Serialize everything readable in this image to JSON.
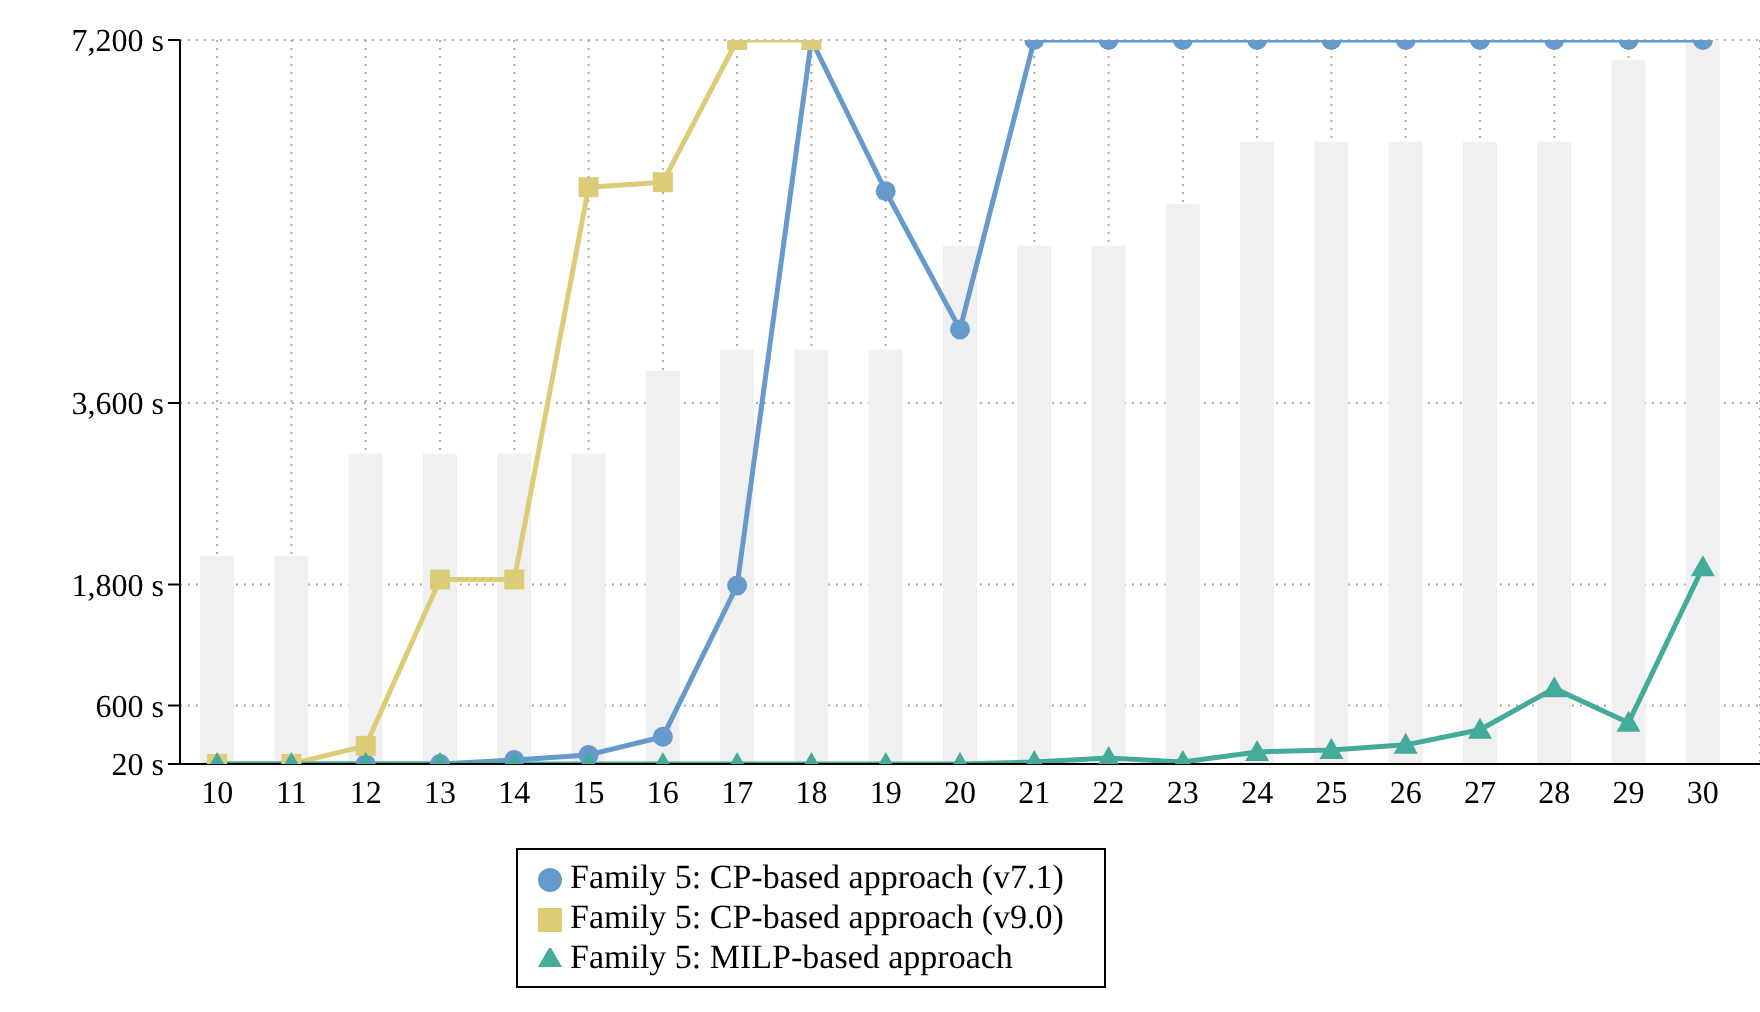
{
  "chart_data": {
    "type": "line",
    "categories": [
      "10",
      "11",
      "12",
      "13",
      "14",
      "15",
      "16",
      "17",
      "18",
      "19",
      "20",
      "21",
      "22",
      "23",
      "24",
      "25",
      "26",
      "27",
      "28",
      "29",
      "30"
    ],
    "ylim": [
      20,
      7200
    ],
    "yticks": [
      {
        "value": 20,
        "label": "20 s"
      },
      {
        "value": 600,
        "label": "600 s"
      },
      {
        "value": 1800,
        "label": "1,800 s"
      },
      {
        "value": 3600,
        "label": "3,600 s"
      },
      {
        "value": 7200,
        "label": "7,200 s"
      }
    ],
    "grid": true,
    "legend": "bottom",
    "line_style": "solid",
    "series": [
      {
        "type": "bar",
        "color": "#f0f0f0",
        "values": [
          2080,
          2080,
          3100,
          3100,
          3100,
          3100,
          3920,
          4130,
          4130,
          4130,
          5160,
          5160,
          5160,
          5570,
          6190,
          6190,
          6190,
          6190,
          6190,
          7000,
          7200
        ]
      },
      {
        "name": "Family 5: CP-based approach (v7.1)",
        "color": "#6699cc",
        "marker": "circle",
        "values": [
          20,
          20,
          20,
          20,
          60,
          110,
          290,
          1790,
          7200,
          5700,
          4330,
          7200,
          7200,
          7200,
          7200,
          7200,
          7200,
          7200,
          7200,
          7200,
          7200
        ]
      },
      {
        "name": "Family 5: CP-based approach (v9.0)",
        "color": "#ddcc77",
        "marker": "square",
        "values": [
          20,
          20,
          200,
          1850,
          1850,
          5740,
          5790,
          7200,
          7200,
          null,
          null,
          null,
          null,
          null,
          null,
          null,
          null,
          null,
          null,
          null,
          null
        ]
      },
      {
        "name": "Family 5: MILP-based approach",
        "color": "#44aa99",
        "marker": "triangle",
        "values": [
          20,
          20,
          20,
          20,
          20,
          20,
          20,
          20,
          20,
          20,
          20,
          40,
          80,
          40,
          140,
          160,
          210,
          360,
          770,
          430,
          1970
        ]
      }
    ]
  }
}
